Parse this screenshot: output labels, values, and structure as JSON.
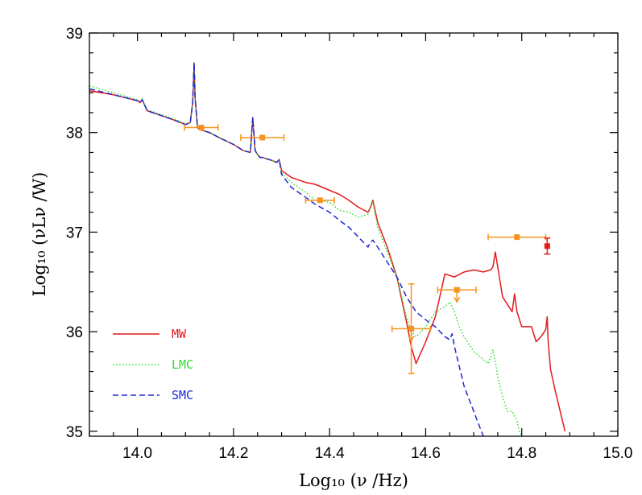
{
  "chart_data": {
    "type": "line",
    "xlabel": "Log₁₀ (ν /Hz)",
    "ylabel": "Log₁₀ (νLν /W)",
    "xlim": [
      13.9,
      15.0
    ],
    "ylim": [
      34.95,
      39.0
    ],
    "x_ticks": [
      14.0,
      14.2,
      14.4,
      14.6,
      14.8,
      15.0
    ],
    "x_tick_labels": [
      "14.0",
      "14.2",
      "14.4",
      "14.6",
      "14.8",
      "15.0"
    ],
    "y_ticks": [
      35,
      36,
      37,
      38,
      39
    ],
    "y_tick_labels": [
      "35",
      "36",
      "37",
      "38",
      "39"
    ],
    "legend_position": "lower-left",
    "series": [
      {
        "name": "MW",
        "color": "#e41a1c",
        "dash": "solid",
        "x": [
          13.9,
          13.95,
          14.0,
          14.005,
          14.01,
          14.02,
          14.05,
          14.08,
          14.1,
          14.11,
          14.115,
          14.118,
          14.12,
          14.125,
          14.13,
          14.15,
          14.17,
          14.2,
          14.22,
          14.235,
          14.24,
          14.245,
          14.25,
          14.255,
          14.26,
          14.28,
          14.29,
          14.295,
          14.3,
          14.32,
          14.35,
          14.37,
          14.4,
          14.42,
          14.44,
          14.46,
          14.48,
          14.485,
          14.49,
          14.5,
          14.52,
          14.54,
          14.56,
          14.57,
          14.58,
          14.6,
          14.62,
          14.64,
          14.66,
          14.68,
          14.7,
          14.72,
          14.735,
          14.74,
          14.745,
          14.75,
          14.76,
          14.78,
          14.785,
          14.79,
          14.8,
          14.82,
          14.83,
          14.84,
          14.85,
          14.853,
          14.855,
          14.86,
          14.87,
          14.89
        ],
        "y": [
          38.42,
          38.38,
          38.32,
          38.3,
          38.33,
          38.22,
          38.17,
          38.12,
          38.08,
          38.1,
          38.3,
          38.7,
          38.35,
          38.05,
          38.03,
          38.0,
          37.95,
          37.88,
          37.82,
          37.8,
          38.15,
          37.82,
          37.78,
          37.75,
          37.75,
          37.72,
          37.7,
          37.73,
          37.62,
          37.55,
          37.5,
          37.48,
          37.42,
          37.38,
          37.32,
          37.25,
          37.2,
          37.25,
          37.32,
          37.1,
          36.85,
          36.55,
          36.1,
          35.85,
          35.68,
          35.9,
          36.15,
          36.58,
          36.55,
          36.6,
          36.62,
          36.6,
          36.62,
          36.65,
          36.8,
          36.65,
          36.35,
          36.2,
          36.38,
          36.2,
          36.05,
          36.05,
          35.9,
          35.95,
          36.02,
          36.15,
          35.9,
          35.62,
          35.4,
          35.0
        ]
      },
      {
        "name": "LMC",
        "color": "#2edc2e",
        "dash": "dotted",
        "x": [
          13.9,
          13.95,
          14.0,
          14.005,
          14.01,
          14.02,
          14.05,
          14.08,
          14.1,
          14.11,
          14.115,
          14.118,
          14.12,
          14.125,
          14.13,
          14.15,
          14.17,
          14.2,
          14.22,
          14.235,
          14.24,
          14.245,
          14.25,
          14.255,
          14.26,
          14.28,
          14.29,
          14.295,
          14.3,
          14.32,
          14.35,
          14.37,
          14.4,
          14.42,
          14.44,
          14.46,
          14.48,
          14.485,
          14.49,
          14.5,
          14.52,
          14.54,
          14.56,
          14.57,
          14.58,
          14.6,
          14.62,
          14.64,
          14.65,
          14.66,
          14.67,
          14.68,
          14.7,
          14.72,
          14.73,
          14.74,
          14.745,
          14.75,
          14.76,
          14.77,
          14.78,
          14.79,
          14.795,
          14.8
        ],
        "y": [
          38.47,
          38.4,
          38.33,
          38.32,
          38.34,
          38.23,
          38.18,
          38.13,
          38.09,
          38.1,
          38.3,
          38.7,
          38.35,
          38.05,
          38.03,
          38.0,
          37.95,
          37.88,
          37.82,
          37.8,
          38.15,
          37.82,
          37.78,
          37.75,
          37.75,
          37.72,
          37.7,
          37.73,
          37.6,
          37.5,
          37.4,
          37.32,
          37.3,
          37.22,
          37.2,
          37.15,
          37.18,
          37.25,
          37.3,
          37.05,
          36.8,
          36.55,
          36.15,
          36.0,
          35.95,
          36.05,
          36.2,
          36.25,
          36.3,
          36.2,
          36.05,
          35.95,
          35.8,
          35.72,
          35.68,
          35.82,
          35.7,
          35.55,
          35.35,
          35.2,
          35.2,
          35.1,
          35.0,
          34.95
        ]
      },
      {
        "name": "SMC",
        "color": "#1f28d6",
        "dash": "dashed",
        "x": [
          13.9,
          13.95,
          14.0,
          14.005,
          14.01,
          14.02,
          14.05,
          14.08,
          14.1,
          14.11,
          14.115,
          14.118,
          14.12,
          14.125,
          14.13,
          14.15,
          14.17,
          14.2,
          14.22,
          14.235,
          14.24,
          14.245,
          14.25,
          14.255,
          14.26,
          14.28,
          14.29,
          14.295,
          14.3,
          14.32,
          14.35,
          14.37,
          14.4,
          14.42,
          14.44,
          14.46,
          14.48,
          14.485,
          14.49,
          14.5,
          14.52,
          14.54,
          14.56,
          14.58,
          14.6,
          14.62,
          14.64,
          14.65,
          14.655,
          14.66,
          14.67,
          14.68,
          14.7,
          14.72
        ],
        "y": [
          38.44,
          38.38,
          38.32,
          38.3,
          38.33,
          38.22,
          38.17,
          38.12,
          38.08,
          38.1,
          38.3,
          38.7,
          38.35,
          38.05,
          38.03,
          38.0,
          37.95,
          37.88,
          37.82,
          37.8,
          38.15,
          37.82,
          37.78,
          37.75,
          37.75,
          37.72,
          37.7,
          37.73,
          37.58,
          37.45,
          37.35,
          37.28,
          37.2,
          37.12,
          37.05,
          36.95,
          36.85,
          36.9,
          36.92,
          36.85,
          36.7,
          36.55,
          36.35,
          36.2,
          36.12,
          36.05,
          35.95,
          35.92,
          35.98,
          35.85,
          35.65,
          35.45,
          35.2,
          34.95
        ]
      }
    ],
    "data_points": {
      "color": "#f7921e",
      "points": [
        {
          "x": 14.133,
          "y": 38.05,
          "xerr": [
            0.035,
            0.035
          ],
          "yerr": [
            0,
            0
          ],
          "upper_limit": false
        },
        {
          "x": 14.26,
          "y": 37.95,
          "xerr": [
            0.045,
            0.045
          ],
          "yerr": [
            0,
            0
          ],
          "upper_limit": false
        },
        {
          "x": 14.38,
          "y": 37.32,
          "xerr": [
            0.03,
            0.03
          ],
          "yerr": [
            0,
            0
          ],
          "upper_limit": false
        },
        {
          "x": 14.57,
          "y": 36.03,
          "xerr": [
            0.04,
            0.04
          ],
          "yerr": [
            0.45,
            0.45
          ],
          "upper_limit": true
        },
        {
          "x": 14.665,
          "y": 36.42,
          "xerr": [
            0.04,
            0.04
          ],
          "yerr": [
            0,
            0
          ],
          "upper_limit": true
        },
        {
          "x": 14.79,
          "y": 36.95,
          "xerr": [
            0.06,
            0.06
          ],
          "yerr": [
            0,
            0
          ],
          "upper_limit": false
        },
        {
          "x": 14.853,
          "y": 36.86,
          "xerr": [
            0,
            0
          ],
          "yerr": [
            0.08,
            0.08
          ],
          "upper_limit": false,
          "color": "#e41a1c"
        }
      ]
    }
  }
}
